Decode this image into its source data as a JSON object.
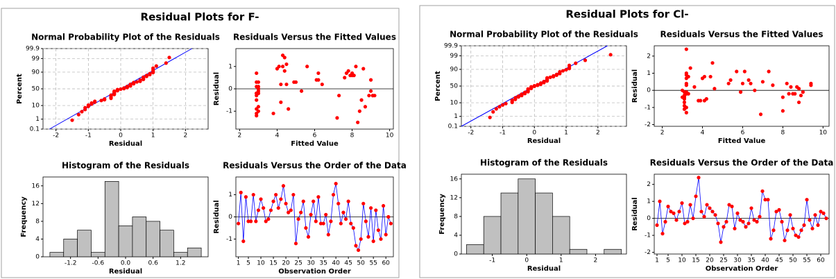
{
  "panels": [
    {
      "title": "Residual Plots for F-"
    },
    {
      "title": "Residual Plots for Cl-"
    }
  ],
  "chart_data": [
    {
      "type": "probability",
      "title": "Normal Probability Plot of the Residuals",
      "xlabel": "Residual",
      "ylabel": "Percent",
      "yscale": "probability",
      "grid": true,
      "color": "#ff0000",
      "line_color": "#0000ff",
      "xlim": [
        -2.4,
        2.7
      ],
      "xticks": [
        -2,
        -1,
        0,
        1,
        2
      ],
      "ylim": [
        0.1,
        99.9
      ],
      "yticks": [
        0.1,
        1,
        10,
        50,
        90,
        99,
        99.9
      ],
      "x": [
        -1.5,
        -1.3,
        -1.2,
        -1.1,
        -1.1,
        -1.0,
        -1.0,
        -0.9,
        -0.9,
        -0.8,
        -0.8,
        -0.6,
        -0.5,
        -0.5,
        -0.3,
        -0.3,
        -0.3,
        -0.3,
        -0.3,
        -0.3,
        -0.2,
        -0.2,
        -0.2,
        -0.2,
        -0.2,
        -0.2,
        -0.2,
        -0.1,
        -0.1,
        -0.1,
        0.0,
        0.1,
        0.1,
        0.2,
        0.2,
        0.2,
        0.3,
        0.3,
        0.3,
        0.3,
        0.4,
        0.4,
        0.4,
        0.5,
        0.6,
        0.6,
        0.6,
        0.7,
        0.7,
        0.7,
        0.7,
        0.8,
        0.8,
        0.9,
        0.9,
        1.0,
        1.0,
        1.0,
        1.0,
        1.1,
        1.4,
        1.5
      ],
      "values": [
        0.8,
        2.4,
        4.0,
        5.6,
        7.3,
        8.9,
        10.5,
        12.1,
        13.7,
        15.3,
        16.9,
        18.5,
        20.2,
        21.8,
        23.4,
        25.0,
        26.6,
        28.2,
        29.8,
        31.5,
        33.1,
        34.7,
        36.3,
        37.9,
        39.5,
        41.1,
        42.7,
        44.4,
        46.0,
        47.6,
        49.2,
        50.8,
        52.4,
        54.0,
        55.6,
        57.3,
        58.9,
        60.5,
        62.1,
        63.7,
        65.3,
        66.9,
        68.5,
        70.2,
        71.8,
        73.4,
        75.0,
        76.6,
        78.2,
        79.8,
        81.5,
        83.1,
        84.7,
        86.3,
        87.9,
        89.5,
        91.1,
        92.7,
        94.4,
        96.0,
        97.6,
        99.2
      ],
      "fit_line": {
        "x": [
          -2.2,
          2.2
        ],
        "values": [
          0.1,
          99.9
        ]
      }
    },
    {
      "type": "scatter",
      "title": "Residuals Versus the Fitted Values",
      "xlabel": "Fitted Value",
      "ylabel": "Residual",
      "color": "#ff0000",
      "hline": 0,
      "xlim": [
        1.8,
        10.2
      ],
      "xticks": [
        2,
        4,
        6,
        8,
        10
      ],
      "ylim": [
        -1.8,
        1.8
      ],
      "yticks": [
        -1,
        0,
        1
      ],
      "x": [
        2.9,
        4.5,
        2.9,
        4.0,
        2.9,
        3.0,
        4.3,
        3.0,
        5.0,
        4.4,
        6.2,
        2.9,
        3.0,
        4.9,
        2.9,
        4.1,
        6.1,
        7.8,
        4.4,
        7.9,
        4.2,
        3.0,
        8.2,
        2.9,
        5.3,
        4.5,
        6.2,
        8.5,
        4.6,
        3.0,
        8.0,
        2.9,
        8.6,
        8.9,
        9.1,
        2.9,
        3.0,
        3.0,
        5.6,
        4.3,
        8.1,
        7.3,
        6.4,
        9.0,
        7.7,
        9.1,
        2.9,
        7.2,
        8.3,
        3.0,
        8.0,
        2.9,
        2.9,
        9.0,
        3.8,
        2.9,
        4.2,
        8.4,
        7.6,
        8.7,
        3.0,
        9.2
      ],
      "values": [
        -0.3,
        1.1,
        -1.1,
        0.9,
        -0.2,
        -0.2,
        1.0,
        -0.2,
        0.3,
        0.8,
        0.4,
        -0.2,
        -0.1,
        0.3,
        0.7,
        1.0,
        0.4,
        0.8,
        1.4,
        0.6,
        0.2,
        0.3,
        1.0,
        -1.2,
        -0.1,
        0.2,
        0.7,
        -0.5,
        -0.9,
        0.1,
        0.7,
        -0.2,
        0.9,
        -0.3,
        -0.3,
        0.1,
        -0.8,
        -0.2,
        1.0,
        1.5,
        0.6,
        -0.3,
        0.2,
        -0.1,
        0.7,
        -0.3,
        -0.5,
        -1.3,
        -1.5,
        -1.0,
        0.6,
        -0.2,
        -0.9,
        0.4,
        -1.1,
        0.3,
        -0.6,
        -1.0,
        0.5,
        -0.8,
        0.0,
        -0.3
      ]
    },
    {
      "type": "histogram",
      "title": "Histogram of the Residuals",
      "xlabel": "Residual",
      "ylabel": "Frequency",
      "color": "#c0c0c0",
      "xlim": [
        -1.8,
        1.8
      ],
      "xticks": [
        -1.2,
        -0.6,
        {
          "value": 0,
          "label": "0.0"
        },
        0.6,
        1.2
      ],
      "ylim": [
        0,
        18
      ],
      "yticks": [
        0,
        4,
        8,
        12,
        16
      ],
      "bins": [
        -1.65,
        -1.35,
        -1.05,
        -0.75,
        -0.45,
        -0.15,
        0.15,
        0.45,
        0.75,
        1.05,
        1.35,
        1.65
      ],
      "values": [
        1,
        4,
        6,
        1,
        17,
        7,
        9,
        8,
        6,
        1,
        2
      ]
    },
    {
      "type": "line",
      "title": "Residuals Versus the Order of the Data",
      "xlabel": "Observation Order",
      "ylabel": "Residual",
      "color": "#ff0000",
      "line_color": "#0000ff",
      "hline": 0,
      "xlim": [
        0,
        63
      ],
      "xticks": [
        1,
        5,
        10,
        15,
        20,
        25,
        30,
        35,
        40,
        45,
        50,
        55,
        60
      ],
      "ylim": [
        -1.8,
        1.8
      ],
      "yticks": [
        -1,
        0,
        1
      ],
      "x": [
        1,
        2,
        3,
        4,
        5,
        6,
        7,
        8,
        9,
        10,
        11,
        12,
        13,
        14,
        15,
        16,
        17,
        18,
        19,
        20,
        21,
        22,
        23,
        24,
        25,
        26,
        27,
        28,
        29,
        30,
        31,
        32,
        33,
        34,
        35,
        36,
        37,
        38,
        39,
        40,
        41,
        42,
        43,
        44,
        45,
        46,
        47,
        48,
        49,
        50,
        51,
        52,
        53,
        54,
        55,
        56,
        57,
        58,
        59,
        60,
        61,
        62
      ],
      "values": [
        -0.3,
        1.1,
        -1.1,
        0.9,
        -0.2,
        -0.2,
        1.0,
        -0.2,
        0.3,
        0.8,
        0.4,
        -0.2,
        -0.1,
        0.3,
        0.7,
        1.0,
        0.4,
        0.8,
        1.4,
        0.6,
        0.2,
        0.3,
        1.0,
        -1.2,
        -0.1,
        0.2,
        0.7,
        -0.5,
        -0.9,
        0.1,
        0.7,
        -0.2,
        0.9,
        -0.3,
        -0.3,
        0.1,
        -0.8,
        -0.2,
        1.0,
        1.5,
        0.6,
        -0.3,
        0.2,
        -0.1,
        0.7,
        -0.3,
        -0.5,
        -1.3,
        -1.5,
        -1.0,
        0.6,
        -0.2,
        -0.9,
        0.4,
        -1.1,
        0.3,
        -0.6,
        -1.0,
        0.5,
        -0.8,
        0.0,
        -0.3
      ]
    },
    {
      "type": "probability",
      "title": "Normal Probability Plot of the Residuals",
      "xlabel": "Residual",
      "ylabel": "Percent",
      "yscale": "probability",
      "grid": true,
      "color": "#ff0000",
      "line_color": "#0000ff",
      "xlim": [
        -2.3,
        2.9
      ],
      "xticks": [
        -2,
        -1,
        0,
        1,
        2
      ],
      "ylim": [
        0.1,
        99.9
      ],
      "yticks": [
        0.1,
        1,
        10,
        50,
        90,
        99,
        99.9
      ],
      "x": [
        -1.4,
        -1.3,
        -1.2,
        -1.1,
        -1.0,
        -0.9,
        -0.7,
        -0.7,
        -0.7,
        -0.6,
        -0.6,
        -0.6,
        -0.5,
        -0.5,
        -0.4,
        -0.4,
        -0.4,
        -0.3,
        -0.3,
        -0.3,
        -0.2,
        -0.2,
        -0.2,
        -0.2,
        -0.2,
        -0.2,
        -0.1,
        -0.1,
        -0.1,
        -0.1,
        0.0,
        0.0,
        0.1,
        0.1,
        0.2,
        0.2,
        0.2,
        0.3,
        0.3,
        0.3,
        0.4,
        0.4,
        0.4,
        0.4,
        0.4,
        0.4,
        0.5,
        0.6,
        0.6,
        0.7,
        0.7,
        0.8,
        0.8,
        0.8,
        0.9,
        1.0,
        1.1,
        1.1,
        1.1,
        1.3,
        1.6,
        2.4
      ],
      "values": [
        0.8,
        2.4,
        4.0,
        5.6,
        7.3,
        8.9,
        10.5,
        12.1,
        13.7,
        15.3,
        16.9,
        18.5,
        20.2,
        21.8,
        23.4,
        25.0,
        26.6,
        28.2,
        29.8,
        31.5,
        33.1,
        34.7,
        36.3,
        37.9,
        39.5,
        41.1,
        42.7,
        44.4,
        46.0,
        47.6,
        49.2,
        50.8,
        52.4,
        54.0,
        55.6,
        57.3,
        58.9,
        60.5,
        62.1,
        63.7,
        65.3,
        66.9,
        68.5,
        70.2,
        71.8,
        73.4,
        75.0,
        76.6,
        78.2,
        79.8,
        81.5,
        83.1,
        84.7,
        86.3,
        87.9,
        89.5,
        91.1,
        92.7,
        94.4,
        96.0,
        97.6,
        99.2
      ],
      "fit_line": {
        "x": [
          -2.3,
          2.3
        ],
        "values": [
          0.1,
          99.9
        ]
      }
    },
    {
      "type": "scatter",
      "title": "Residuals Versus the Fitted Values",
      "xlabel": "Fitted Value",
      "ylabel": "Residual",
      "color": "#ff0000",
      "hline": 0,
      "xlim": [
        1.6,
        10.3
      ],
      "xticks": [
        2,
        4,
        6,
        8,
        10
      ],
      "ylim": [
        -2.1,
        2.6
      ],
      "yticks": [
        -2,
        -1,
        0,
        1,
        2
      ],
      "x": [
        3.1,
        3.2,
        3.1,
        3.3,
        4.0,
        5.3,
        3.2,
        3.1,
        6.4,
        3.2,
        3.1,
        3.2,
        4.1,
        3.0,
        3.4,
        3.2,
        6.0,
        8.8,
        4.4,
        5.4,
        8.2,
        3.6,
        3.1,
        6.9,
        4.2,
        3.2,
        3.3,
        3.2,
        3.9,
        9.4,
        5.9,
        8.5,
        3.1,
        8.9,
        6.3,
        3.2,
        8.6,
        4.6,
        4.5,
        7.3,
        5.7,
        8.0,
        3.1,
        9.4,
        7.0,
        8.3,
        3.2,
        3.1,
        8.7,
        3.8,
        3.2,
        3.1,
        8.8,
        8.0,
        6.1,
        9.0,
        4.1,
        8.4,
        3.0,
        3.2,
        7.5,
        6.6
      ],
      "values": [
        -0.4,
        1.0,
        -0.9,
        -0.2,
        0.7,
        0.4,
        0.3,
        -0.1,
        0.4,
        0.9,
        -0.3,
        -0.2,
        0.8,
        0.0,
        1.3,
        2.4,
        0.4,
        0.1,
        0.8,
        0.6,
        0.4,
        0.2,
        -0.3,
        -1.4,
        -0.5,
        -0.2,
        0.8,
        0.7,
        -0.6,
        0.3,
        -0.1,
        -0.2,
        -0.5,
        -0.3,
        0.6,
        -0.1,
        -0.2,
        0.1,
        1.6,
        1.1,
        1.1,
        -1.2,
        -0.7,
        0.4,
        0.5,
        -0.2,
        -1.3,
        -0.7,
        0.2,
        -0.6,
        -1.0,
        -1.1,
        -0.7,
        -0.4,
        1.1,
        -0.1,
        -0.6,
        0.2,
        -0.4,
        0.4,
        0.3,
        0.0
      ]
    },
    {
      "type": "histogram",
      "title": "Histogram of the Residuals",
      "xlabel": "Residual",
      "ylabel": "Frequency",
      "color": "#c0c0c0",
      "xlim": [
        -1.9,
        2.9
      ],
      "xticks": [
        -1,
        0,
        1,
        2
      ],
      "ylim": [
        0,
        17
      ],
      "yticks": [
        0,
        4,
        8,
        12,
        16
      ],
      "bins": [
        -1.75,
        -1.25,
        -0.75,
        -0.25,
        0.25,
        0.75,
        1.25,
        1.75,
        2.25,
        2.75
      ],
      "values": [
        2,
        8,
        13,
        16,
        13,
        8,
        1,
        0,
        1
      ]
    },
    {
      "type": "line",
      "title": "Residuals Versus the Order of the Data",
      "xlabel": "Observation Order",
      "ylabel": "Residual",
      "color": "#ff0000",
      "line_color": "#0000ff",
      "hline": 0,
      "xlim": [
        0,
        63
      ],
      "xticks": [
        1,
        5,
        10,
        15,
        20,
        25,
        30,
        35,
        40,
        45,
        50,
        55,
        60
      ],
      "ylim": [
        -2.1,
        2.6
      ],
      "yticks": [
        -2,
        -1,
        0,
        1,
        2
      ],
      "x": [
        1,
        2,
        3,
        4,
        5,
        6,
        7,
        8,
        9,
        10,
        11,
        12,
        13,
        14,
        15,
        16,
        17,
        18,
        19,
        20,
        21,
        22,
        23,
        24,
        25,
        26,
        27,
        28,
        29,
        30,
        31,
        32,
        33,
        34,
        35,
        36,
        37,
        38,
        39,
        40,
        41,
        42,
        43,
        44,
        45,
        46,
        47,
        48,
        49,
        50,
        51,
        52,
        53,
        54,
        55,
        56,
        57,
        58,
        59,
        60,
        61,
        62
      ],
      "values": [
        -0.4,
        1.0,
        -0.9,
        -0.2,
        0.7,
        0.4,
        0.3,
        -0.1,
        0.4,
        0.9,
        -0.3,
        -0.2,
        0.8,
        0.0,
        1.3,
        2.4,
        0.4,
        0.1,
        0.8,
        0.6,
        0.4,
        0.2,
        -0.3,
        -1.4,
        -0.5,
        -0.2,
        0.8,
        0.7,
        -0.6,
        0.3,
        -0.1,
        -0.2,
        -0.5,
        -0.3,
        0.6,
        -0.1,
        -0.2,
        0.1,
        1.6,
        1.1,
        1.1,
        -1.2,
        -0.7,
        0.4,
        0.5,
        -0.2,
        -1.3,
        -0.7,
        0.2,
        -0.6,
        -1.0,
        -1.1,
        -0.7,
        -0.4,
        1.1,
        -0.1,
        -0.6,
        0.2,
        -0.4,
        0.4,
        0.3,
        0.0
      ]
    }
  ]
}
